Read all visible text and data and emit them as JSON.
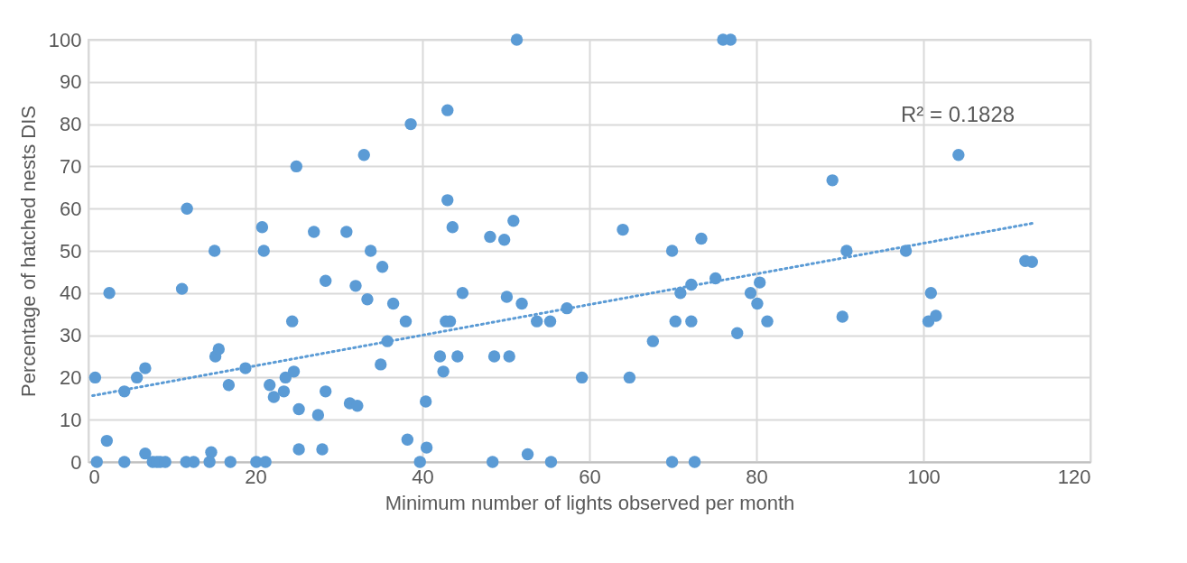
{
  "chart_data": {
    "type": "scatter",
    "xlabel": "Minimum number of lights observed per month",
    "ylabel": "Percentage of hatched nests DIS",
    "xlim": [
      0,
      120
    ],
    "xticks": [
      0,
      20,
      40,
      60,
      80,
      100,
      120
    ],
    "ylim": [
      0,
      100
    ],
    "yticks": [
      0,
      10,
      20,
      30,
      40,
      50,
      60,
      70,
      80,
      90,
      100
    ],
    "grid": true,
    "annotations": [
      "R² = 0.1828"
    ],
    "series": [
      {
        "color": "#5b9bd5",
        "marker": "circle",
        "x": [
          0.8,
          1,
          2.2,
          2.5,
          4.3,
          4.3,
          5.8,
          6.8,
          6.8,
          7.7,
          8.2,
          8.6,
          9.2,
          11.2,
          11.8,
          11.7,
          12.6,
          14.7,
          14.5,
          15.1,
          15.2,
          15.6,
          16.8,
          17,
          18.8,
          20.1,
          20.8,
          21,
          21.2,
          21.7,
          22.2,
          23.4,
          23.6,
          24.4,
          24.6,
          24.9,
          25.2,
          25.2,
          27,
          27.5,
          28,
          28.4,
          28.4,
          30.9,
          31.3,
          32,
          32.2,
          33,
          33.4,
          33.8,
          35,
          35.2,
          35.8,
          36.5,
          38,
          38.2,
          38.6,
          39.7,
          40.4,
          40.5,
          42.1,
          42.5,
          42.8,
          43,
          43,
          43.3,
          43.6,
          44.2,
          44.8,
          48.1,
          48.4,
          48.6,
          49.8,
          50.1,
          50.4,
          50.9,
          51.3,
          51.9,
          52.6,
          53.7,
          55.3,
          55.4,
          57.3,
          59.1,
          64,
          64.8,
          67.6,
          69.9,
          69.9,
          70.3,
          70.9,
          72.2,
          72.2,
          72.6,
          73.4,
          75.1,
          76,
          76.9,
          77.7,
          79.3,
          80.1,
          80.4,
          81.3,
          89.1,
          90.3,
          90.8,
          97.9,
          100.6,
          100.9,
          101.5,
          104.2,
          112.2,
          113
        ],
        "values": [
          20,
          0,
          5,
          40,
          16.7,
          0,
          20,
          22.2,
          2,
          0,
          0,
          0,
          0,
          41,
          60,
          0,
          0,
          2.3,
          0,
          50,
          25,
          26.7,
          18.2,
          0,
          22.2,
          0,
          55.6,
          50,
          0,
          18.2,
          15.4,
          16.7,
          20,
          33.3,
          21.4,
          70,
          12.5,
          3,
          54.5,
          11.1,
          3,
          16.7,
          42.9,
          54.5,
          13.9,
          41.7,
          13.3,
          72.7,
          38.5,
          50,
          23.1,
          46.2,
          28.6,
          37.5,
          33.3,
          5.3,
          80,
          0,
          14.3,
          3.4,
          25,
          21.4,
          33.3,
          62,
          83.3,
          33.3,
          55.6,
          25,
          40,
          53.3,
          0,
          25,
          52.6,
          39.1,
          25,
          57.1,
          100,
          37.5,
          1.8,
          33.3,
          33.3,
          0,
          36.4,
          20,
          55,
          20,
          28.6,
          50,
          0,
          33.3,
          40,
          42,
          33.3,
          0,
          52.9,
          43.5,
          100,
          100,
          30.5,
          40,
          37.5,
          42.5,
          33.3,
          66.7,
          34.4,
          50,
          50,
          33.3,
          40,
          34.6,
          72.7,
          47.6,
          47.4
        ]
      },
      {
        "type": "line",
        "color": "#5b9bd5",
        "line_style": "dotted",
        "marker": "none",
        "x": [
          0.5,
          113
        ],
        "values": [
          15.7,
          56.5
        ]
      }
    ]
  }
}
